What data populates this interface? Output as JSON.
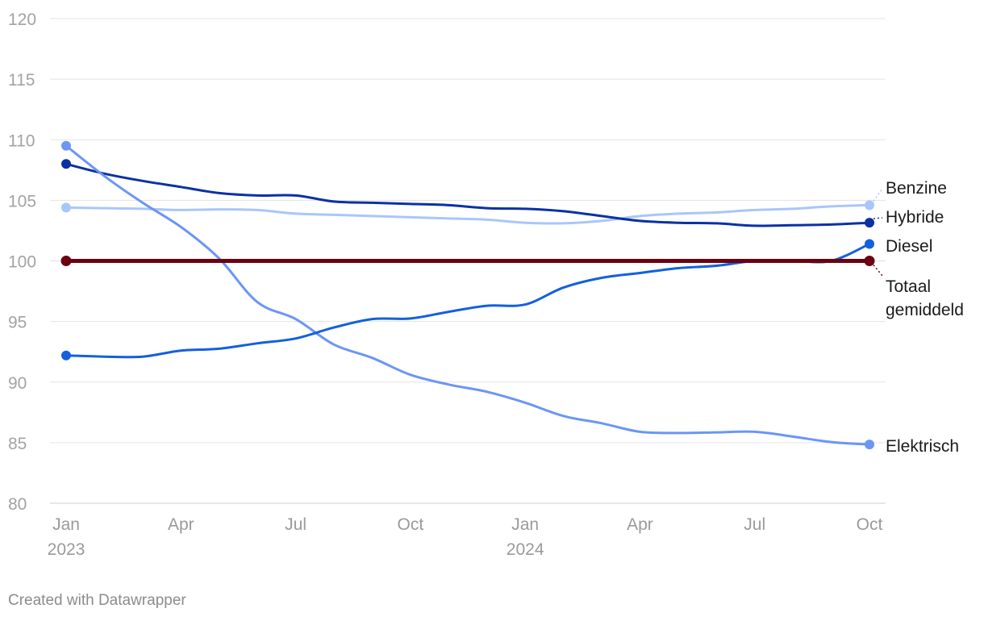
{
  "chart_data": {
    "type": "line",
    "title": "",
    "xlabel": "",
    "ylabel": "",
    "ylim": [
      80,
      120
    ],
    "y_ticks": [
      "80",
      "85",
      "90",
      "95",
      "100",
      "105",
      "110",
      "115",
      "120"
    ],
    "x_ticks": [
      {
        "month": 0,
        "label": "Jan",
        "sub": "2023"
      },
      {
        "month": 3,
        "label": "Apr",
        "sub": ""
      },
      {
        "month": 6,
        "label": "Jul",
        "sub": ""
      },
      {
        "month": 9,
        "label": "Oct",
        "sub": ""
      },
      {
        "month": 12,
        "label": "Jan",
        "sub": "2024"
      },
      {
        "month": 15,
        "label": "Apr",
        "sub": ""
      },
      {
        "month": 18,
        "label": "Jul",
        "sub": ""
      },
      {
        "month": 21,
        "label": "Oct",
        "sub": ""
      }
    ],
    "x_range": [
      0,
      21
    ],
    "series": [
      {
        "name": "Benzine",
        "label_lines": [
          "Benzine"
        ],
        "color": "#a9c6fb",
        "width": 3,
        "values": [
          104.4,
          104.35,
          104.3,
          104.2,
          104.25,
          104.2,
          103.9,
          103.8,
          103.7,
          103.6,
          103.5,
          103.4,
          103.15,
          103.1,
          103.3,
          103.7,
          103.9,
          104.0,
          104.2,
          104.3,
          104.5,
          104.6
        ]
      },
      {
        "name": "Hybride",
        "label_lines": [
          "Hybride"
        ],
        "color": "#0b31a3",
        "width": 3,
        "values": [
          108.0,
          107.2,
          106.6,
          106.1,
          105.6,
          105.4,
          105.4,
          104.9,
          104.8,
          104.7,
          104.6,
          104.35,
          104.3,
          104.1,
          103.7,
          103.3,
          103.15,
          103.1,
          102.9,
          102.95,
          103.0,
          103.15
        ]
      },
      {
        "name": "Diesel",
        "label_lines": [
          "Diesel"
        ],
        "color": "#1360de",
        "width": 3,
        "values": [
          92.2,
          92.1,
          92.1,
          92.6,
          92.75,
          93.2,
          93.6,
          94.5,
          95.2,
          95.25,
          95.8,
          96.3,
          96.4,
          97.8,
          98.6,
          99.0,
          99.4,
          99.6,
          100.0,
          100.0,
          100.0,
          101.4
        ]
      },
      {
        "name": "Elektrisch",
        "label_lines": [
          "Elektrisch"
        ],
        "color": "#6b96f5",
        "width": 3,
        "values": [
          109.5,
          107.0,
          104.8,
          102.8,
          100.2,
          96.6,
          95.2,
          93.1,
          92.0,
          90.6,
          89.8,
          89.2,
          88.3,
          87.2,
          86.6,
          85.9,
          85.8,
          85.85,
          85.9,
          85.5,
          85.05,
          84.85
        ]
      },
      {
        "name": "Totaal gemiddeld",
        "label_lines": [
          "Totaal",
          "gemiddeld"
        ],
        "color": "#6b0010",
        "width": 5,
        "values": [
          100,
          100,
          100,
          100,
          100,
          100,
          100,
          100,
          100,
          100,
          100,
          100,
          100,
          100,
          100,
          100,
          100,
          100,
          100,
          100,
          100,
          100
        ]
      }
    ]
  },
  "footer": {
    "credit": "Created with Datawrapper"
  }
}
